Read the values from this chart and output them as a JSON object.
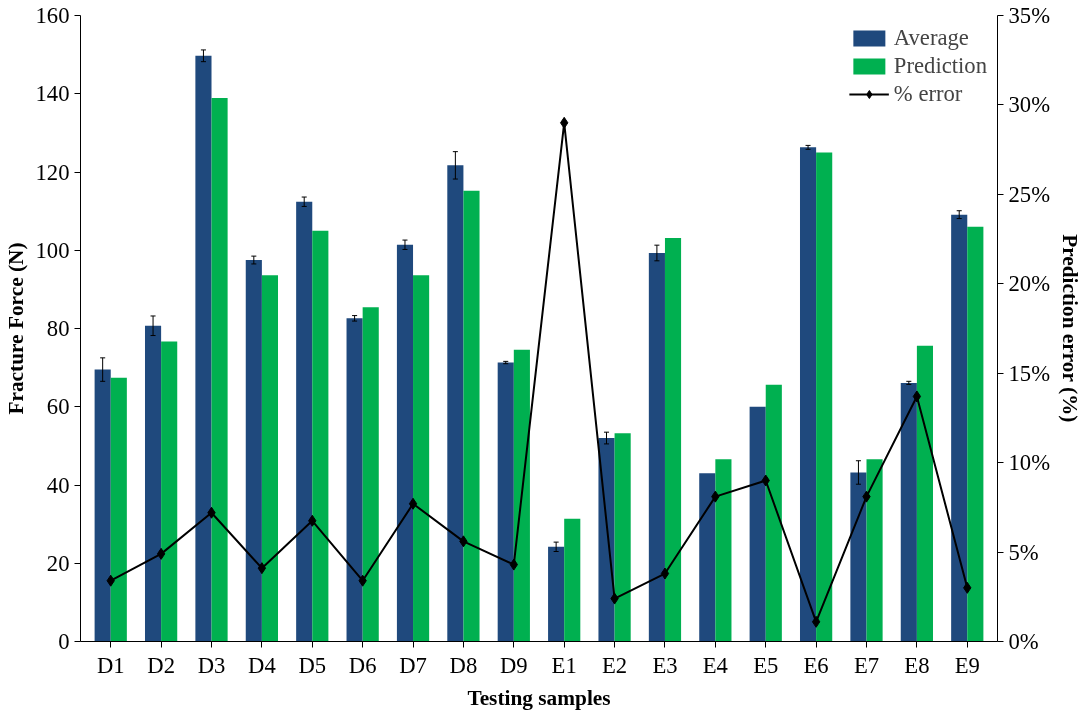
{
  "chart_data": {
    "type": "bar",
    "xlabel": "Testing samples",
    "ylabel": "Fracture Force (N)",
    "y2label": "Prediction error (%)",
    "categories": [
      "D1",
      "D2",
      "D3",
      "D4",
      "D5",
      "D6",
      "D7",
      "D8",
      "D9",
      "E1",
      "E2",
      "E3",
      "E4",
      "E5",
      "E6",
      "E7",
      "E8",
      "E9"
    ],
    "series": [
      {
        "name": "Average",
        "color": "#1f497d",
        "values": [
          69.5,
          80.7,
          149.7,
          97.5,
          112.4,
          82.6,
          101.4,
          121.7,
          71.3,
          24.2,
          52.0,
          99.3,
          43.0,
          60.0,
          126.3,
          43.2,
          66.1,
          109.1
        ],
        "errors": [
          3,
          2.5,
          1.5,
          1,
          1.2,
          0.7,
          1.2,
          3.5,
          0.3,
          1.2,
          1.5,
          2,
          null,
          null,
          0.5,
          3,
          0.4,
          1
        ]
      },
      {
        "name": "Prediction",
        "color": "#00b050",
        "values": [
          67.4,
          76.7,
          138.9,
          93.6,
          105.0,
          85.4,
          93.6,
          115.2,
          74.6,
          31.4,
          53.2,
          103.1,
          46.6,
          65.6,
          125.0,
          46.6,
          75.6,
          106.0
        ]
      },
      {
        "name": "% error",
        "type": "line",
        "axis": "y2",
        "color": "#000000",
        "marker": "diamond",
        "values": [
          3.4,
          4.9,
          7.2,
          4.1,
          6.75,
          3.4,
          7.7,
          5.6,
          4.3,
          29.0,
          2.4,
          3.8,
          8.1,
          9.0,
          1.1,
          8.1,
          13.7,
          3.0
        ]
      }
    ],
    "ylim": [
      0,
      160
    ],
    "yticks": [
      0,
      20,
      40,
      60,
      80,
      100,
      120,
      140,
      160
    ],
    "y2lim": [
      0,
      35
    ],
    "y2ticks": [
      {
        "value": 0,
        "label": "0%"
      },
      {
        "value": 5,
        "label": "5%"
      },
      {
        "value": 10,
        "label": "10%"
      },
      {
        "value": 15,
        "label": "15%"
      },
      {
        "value": 20,
        "label": "20%"
      },
      {
        "value": 25,
        "label": "25%"
      },
      {
        "value": 30,
        "label": "30%"
      },
      {
        "value": 35,
        "label": "35%"
      }
    ],
    "grid": false,
    "legend": "top right"
  }
}
